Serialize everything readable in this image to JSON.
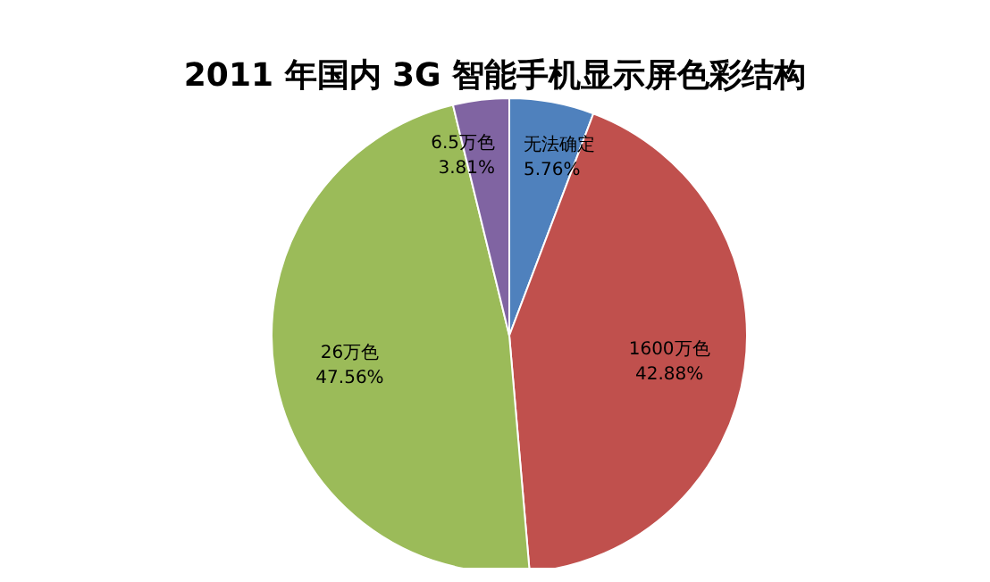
{
  "chart_data": {
    "type": "pie",
    "title": "2011 年国内 3G 智能手机显示屏色彩结构",
    "categories": [
      "无法确定",
      "1600万色",
      "26万色",
      "6.5万色"
    ],
    "values": [
      5.76,
      42.88,
      47.56,
      3.81
    ],
    "colors": [
      "#4f81bd",
      "#c0504d",
      "#9bbb59",
      "#8064a2"
    ],
    "value_labels": [
      "5.76%",
      "42.88%",
      "47.56%",
      "3.81%"
    ]
  }
}
